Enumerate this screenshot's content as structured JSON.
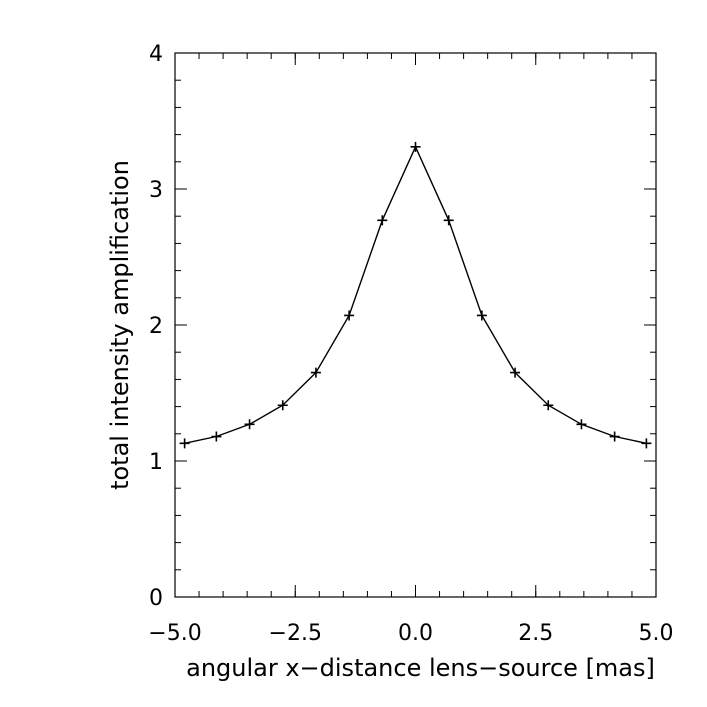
{
  "chart_data": {
    "type": "line",
    "title": "",
    "xlabel": "angular x-distance lens-source [mas]",
    "ylabel": "total intensity amplification",
    "xlim": [
      -5.0,
      5.0
    ],
    "ylim": [
      0,
      4
    ],
    "x_ticks": [
      -5.0,
      -2.5,
      0.0,
      2.5,
      5.0
    ],
    "x_tick_labels": [
      "-5.0",
      "-2.5",
      "0.0",
      "2.5",
      "5.0"
    ],
    "y_ticks": [
      0,
      1,
      2,
      3,
      4
    ],
    "y_tick_labels": [
      "0",
      "1",
      "2",
      "3",
      "4"
    ],
    "x_minor_step": 0.5,
    "y_minor_step": 0.2,
    "grid": false,
    "marker": "plus",
    "line_color": "#000000",
    "series": [
      {
        "x": [
          -4.8,
          -4.14,
          -3.45,
          -2.76,
          -2.07,
          -1.38,
          -0.69,
          0.0,
          0.69,
          1.38,
          2.07,
          2.76,
          3.45,
          4.14,
          4.8
        ],
        "y": [
          1.13,
          1.18,
          1.27,
          1.41,
          1.65,
          2.07,
          2.77,
          3.31,
          2.77,
          2.07,
          1.65,
          1.41,
          1.27,
          1.18,
          1.13
        ]
      }
    ]
  }
}
